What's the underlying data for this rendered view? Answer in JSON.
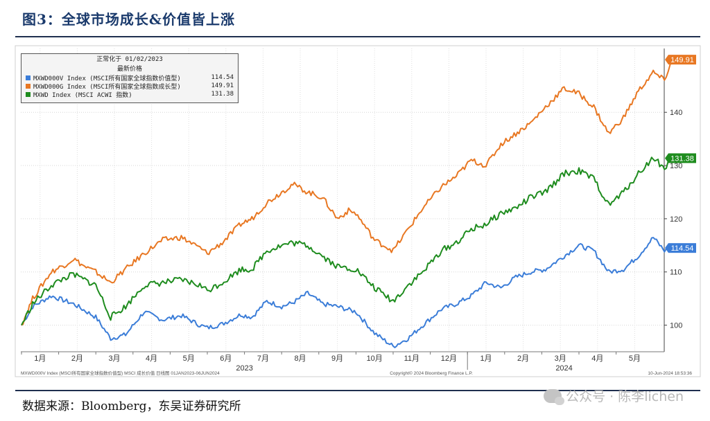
{
  "page_title": "图3：全球市场成长&价值皆上涨",
  "source_note": "数据来源：Bloomberg，东吴证券研究所",
  "watermark": "公众号 · 陈李lichen",
  "footer": {
    "left": "MXWD000V Index (MSCI所有国家全球指数价值型)  MSCI 成长价值    日线图 01JAN2023-06JUN2024",
    "center": "Copyright© 2024 Bloomberg Finance L.P.",
    "right": "10-Jun-2024 18:53:36"
  },
  "chart_data": {
    "type": "line",
    "legend": {
      "header_line1": "正常化于 01/02/2023",
      "header_line2": "最新价格",
      "placement": "top-left"
    },
    "x_tick_labels": [
      "1月",
      "2月",
      "3月",
      "4月",
      "5月",
      "6月",
      "7月",
      "8月",
      "9月",
      "10月",
      "11月",
      "12月",
      "1月",
      "2月",
      "3月",
      "4月",
      "5月"
    ],
    "year_labels": [
      "2023",
      "2024"
    ],
    "y_ticks": [
      100,
      110,
      120,
      130,
      140
    ],
    "ylim": [
      95,
      152
    ],
    "grid": true,
    "series": [
      {
        "name": "MXWD000V Index (MSCI所有国家全球指数价值型)",
        "legend_value": "114.54",
        "last_label": "114.54",
        "color": "#3b7dd8",
        "points": [
          [
            0,
            100
          ],
          [
            0.3,
            103.5
          ],
          [
            0.8,
            105.5
          ],
          [
            1.4,
            104
          ],
          [
            2.0,
            101.5
          ],
          [
            2.4,
            97.5
          ],
          [
            2.8,
            98.2
          ],
          [
            3.3,
            102.5
          ],
          [
            3.8,
            101
          ],
          [
            4.3,
            101.8
          ],
          [
            4.8,
            100
          ],
          [
            5.0,
            99.5
          ],
          [
            5.4,
            100.2
          ],
          [
            5.9,
            102
          ],
          [
            6.2,
            101.5
          ],
          [
            6.6,
            104.5
          ],
          [
            7.0,
            103.5
          ],
          [
            7.3,
            104.2
          ],
          [
            7.7,
            106
          ],
          [
            8.1,
            104
          ],
          [
            8.5,
            103.5
          ],
          [
            9.0,
            102.5
          ],
          [
            9.5,
            98.5
          ],
          [
            10.0,
            96
          ],
          [
            10.4,
            97.5
          ],
          [
            10.8,
            100
          ],
          [
            11.3,
            103
          ],
          [
            11.7,
            104
          ],
          [
            12.1,
            105.5
          ],
          [
            12.5,
            108
          ],
          [
            12.9,
            107
          ],
          [
            13.3,
            109
          ],
          [
            13.7,
            110
          ],
          [
            14.1,
            110.5
          ],
          [
            14.6,
            113
          ],
          [
            15.0,
            115
          ],
          [
            15.4,
            114
          ],
          [
            15.8,
            110
          ],
          [
            16.2,
            110.5
          ],
          [
            16.6,
            113
          ],
          [
            17.0,
            116.5
          ],
          [
            17.3,
            114
          ],
          [
            17.5,
            114.5
          ]
        ]
      },
      {
        "name": "MXWD000G Index (MSCI所有国家全球指数成长型)",
        "legend_value": "149.91",
        "last_label": "149.91",
        "color": "#e87722",
        "points": [
          [
            0,
            100
          ],
          [
            0.3,
            105
          ],
          [
            0.8,
            110
          ],
          [
            1.2,
            111.5
          ],
          [
            1.4,
            112.5
          ],
          [
            1.7,
            111
          ],
          [
            2.0,
            110
          ],
          [
            2.4,
            108
          ],
          [
            2.8,
            110.5
          ],
          [
            3.3,
            113.5
          ],
          [
            3.8,
            116
          ],
          [
            4.3,
            116.5
          ],
          [
            4.8,
            114.5
          ],
          [
            5.0,
            113.5
          ],
          [
            5.4,
            115.5
          ],
          [
            5.9,
            119
          ],
          [
            6.2,
            120
          ],
          [
            6.6,
            123
          ],
          [
            7.0,
            125
          ],
          [
            7.3,
            126.5
          ],
          [
            7.7,
            125
          ],
          [
            8.1,
            124
          ],
          [
            8.5,
            120
          ],
          [
            8.8,
            121.5
          ],
          [
            9.0,
            121
          ],
          [
            9.5,
            116
          ],
          [
            10.0,
            114
          ],
          [
            10.4,
            118
          ],
          [
            10.8,
            122
          ],
          [
            11.3,
            126
          ],
          [
            11.7,
            128
          ],
          [
            12.1,
            131
          ],
          [
            12.5,
            130
          ],
          [
            12.9,
            134
          ],
          [
            13.3,
            136
          ],
          [
            13.7,
            138
          ],
          [
            14.1,
            141
          ],
          [
            14.6,
            144.5
          ],
          [
            15.0,
            143.5
          ],
          [
            15.4,
            141
          ],
          [
            15.8,
            136
          ],
          [
            16.2,
            139
          ],
          [
            16.6,
            144
          ],
          [
            17.0,
            147.5
          ],
          [
            17.3,
            146
          ],
          [
            17.5,
            149.9
          ]
        ]
      },
      {
        "name": "MXWD Index (MSCI ACWI 指数)",
        "legend_value": "131.38",
        "last_label": "131.38",
        "color": "#1e8c1e",
        "points": [
          [
            0,
            100
          ],
          [
            0.3,
            104
          ],
          [
            0.8,
            107.5
          ],
          [
            1.2,
            109
          ],
          [
            1.4,
            109.5
          ],
          [
            1.7,
            108.5
          ],
          [
            2.0,
            107.5
          ],
          [
            2.4,
            101.5
          ],
          [
            2.8,
            103.5
          ],
          [
            3.3,
            107.5
          ],
          [
            3.8,
            108
          ],
          [
            4.3,
            108.5
          ],
          [
            4.8,
            107.5
          ],
          [
            5.0,
            106.5
          ],
          [
            5.4,
            108
          ],
          [
            5.9,
            110.5
          ],
          [
            6.2,
            110.5
          ],
          [
            6.6,
            114
          ],
          [
            7.0,
            115
          ],
          [
            7.3,
            115.5
          ],
          [
            7.7,
            115
          ],
          [
            8.1,
            113
          ],
          [
            8.5,
            111
          ],
          [
            9.0,
            110.5
          ],
          [
            9.5,
            107
          ],
          [
            10.0,
            104.5
          ],
          [
            10.4,
            107.5
          ],
          [
            10.8,
            110
          ],
          [
            11.3,
            114
          ],
          [
            11.7,
            115.5
          ],
          [
            12.1,
            118
          ],
          [
            12.5,
            119
          ],
          [
            12.9,
            121
          ],
          [
            13.3,
            122
          ],
          [
            13.7,
            124
          ],
          [
            14.1,
            125
          ],
          [
            14.6,
            128.5
          ],
          [
            15.0,
            129
          ],
          [
            15.4,
            127.5
          ],
          [
            15.8,
            122.5
          ],
          [
            16.2,
            125
          ],
          [
            16.6,
            128.5
          ],
          [
            17.0,
            131.5
          ],
          [
            17.3,
            129.5
          ],
          [
            17.5,
            131.38
          ]
        ]
      }
    ]
  }
}
